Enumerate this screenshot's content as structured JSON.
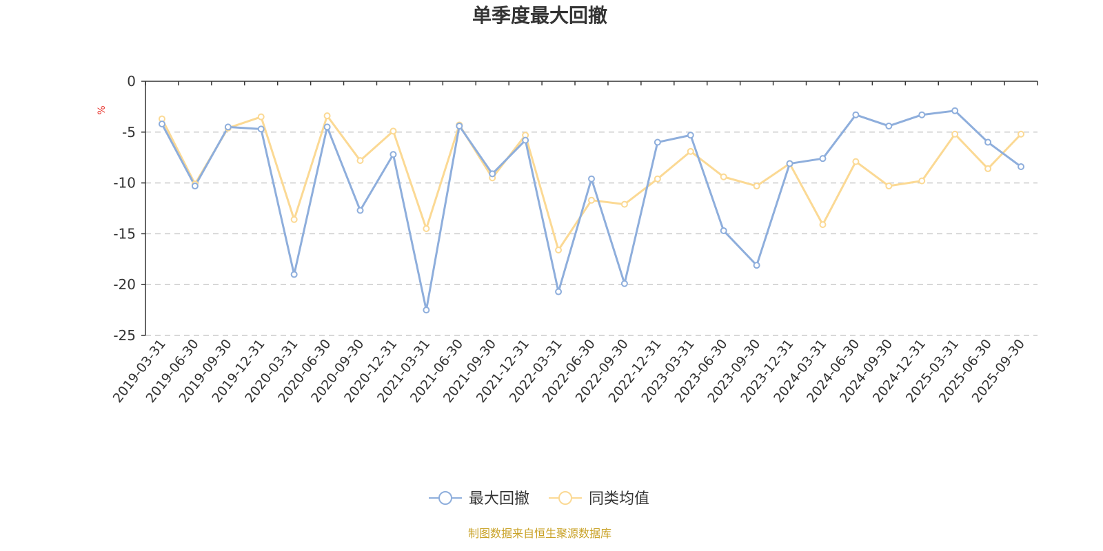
{
  "chart_data": {
    "type": "line",
    "title": "单季度最大回撤",
    "ylabel": "%",
    "xlabel": "",
    "ylim": [
      -25,
      0
    ],
    "yticks": [
      0,
      -5,
      -10,
      -15,
      -20,
      -25
    ],
    "grid": "horizontal dashed",
    "legend_position": "bottom-center",
    "categories": [
      "2019-03-31",
      "2019-06-30",
      "2019-09-30",
      "2019-12-31",
      "2020-03-31",
      "2020-06-30",
      "2020-09-30",
      "2020-12-31",
      "2021-03-31",
      "2021-06-30",
      "2021-09-30",
      "2021-12-31",
      "2022-03-31",
      "2022-06-30",
      "2022-09-30",
      "2022-12-31",
      "2023-03-31",
      "2023-06-30",
      "2023-09-30",
      "2023-12-31",
      "2024-03-31",
      "2024-06-30",
      "2024-09-30",
      "2024-12-31",
      "2025-03-31",
      "2025-06-30",
      "2025-09-30"
    ],
    "series": [
      {
        "name": "最大回撤",
        "color": "#8eaedc",
        "values": [
          -4.2,
          -10.3,
          -4.5,
          -4.7,
          -19.0,
          -4.5,
          -12.7,
          -7.2,
          -22.5,
          -4.4,
          -9.1,
          -5.8,
          -20.7,
          -9.6,
          -19.9,
          -6.0,
          -5.3,
          -14.7,
          -18.1,
          -8.1,
          -7.6,
          -3.3,
          -4.4,
          -3.3,
          -2.9,
          -6.0,
          -8.4
        ]
      },
      {
        "name": "同类均值",
        "color": "#fbd994",
        "values": [
          -3.7,
          -10.1,
          -4.6,
          -3.5,
          -13.6,
          -3.4,
          -7.8,
          -4.9,
          -14.5,
          -4.3,
          -9.5,
          -5.3,
          -16.6,
          -11.7,
          -12.1,
          -9.6,
          -6.9,
          -9.4,
          -10.3,
          -8.1,
          -14.1,
          -7.9,
          -10.3,
          -9.8,
          -5.2,
          -8.6,
          -5.2
        ]
      }
    ]
  },
  "footer": {
    "source_text": "制图数据来自恒生聚源数据库"
  }
}
